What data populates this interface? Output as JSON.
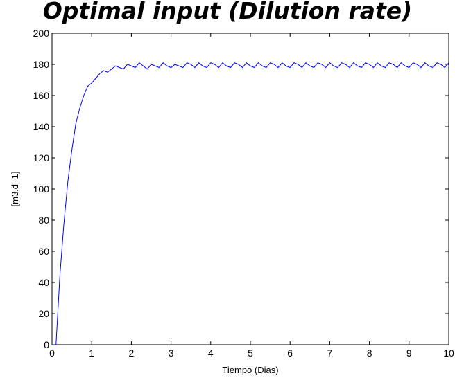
{
  "chart_data": {
    "type": "line",
    "title": "Optimal input (Dilution rate)",
    "xlabel": "Tiempo (Dias)",
    "ylabel": "[m3.d−1]",
    "xlim": [
      0,
      10
    ],
    "ylim": [
      0,
      200
    ],
    "xticks": [
      "0",
      "1",
      "2",
      "3",
      "4",
      "5",
      "6",
      "7",
      "8",
      "9",
      "10"
    ],
    "yticks": [
      "0",
      "20",
      "40",
      "60",
      "80",
      "100",
      "120",
      "140",
      "160",
      "180",
      "200"
    ],
    "grid": false,
    "line_color": "#0000ff",
    "series": [
      {
        "x": [
          0,
          0.1,
          0.2,
          0.3,
          0.4,
          0.5,
          0.6,
          0.7,
          0.8,
          0.9,
          1.0,
          1.1,
          1.2,
          1.3,
          1.4,
          1.5,
          1.6,
          1.7,
          1.8,
          1.9,
          2.0,
          2.1,
          2.2,
          2.3,
          2.4,
          2.5,
          2.6,
          2.7,
          2.8,
          2.9,
          3.0,
          3.1,
          3.2,
          3.3,
          3.4,
          3.5,
          3.6,
          3.7,
          3.8,
          3.9,
          4.0,
          4.1,
          4.2,
          4.3,
          4.4,
          4.5,
          4.6,
          4.7,
          4.8,
          4.9,
          5.0,
          5.1,
          5.2,
          5.3,
          5.4,
          5.5,
          5.6,
          5.7,
          5.8,
          5.9,
          6.0,
          6.1,
          6.2,
          6.3,
          6.4,
          6.5,
          6.6,
          6.7,
          6.8,
          6.9,
          7.0,
          7.1,
          7.2,
          7.3,
          7.4,
          7.5,
          7.6,
          7.7,
          7.8,
          7.9,
          8.0,
          8.1,
          8.2,
          8.3,
          8.4,
          8.5,
          8.6,
          8.7,
          8.8,
          8.9,
          9.0,
          9.1,
          9.2,
          9.3,
          9.4,
          9.5,
          9.6,
          9.7,
          9.8,
          9.9,
          10.0
        ],
        "y": [
          0,
          0,
          45,
          78,
          105,
          125,
          142,
          152,
          160,
          166,
          168,
          171,
          174,
          176,
          175,
          177,
          179,
          178,
          177,
          180,
          179,
          178,
          181,
          179,
          177,
          180,
          179,
          178,
          181,
          179,
          178,
          180,
          179,
          178,
          181,
          180,
          178,
          181,
          179,
          178,
          181,
          180,
          178,
          181,
          179,
          178,
          181,
          180,
          178,
          181,
          179,
          178,
          181,
          179,
          178,
          181,
          180,
          178,
          181,
          179,
          178,
          181,
          180,
          178,
          181,
          179,
          178,
          181,
          180,
          178,
          181,
          179,
          178,
          181,
          180,
          178,
          181,
          179,
          178,
          181,
          180,
          178,
          181,
          179,
          178,
          181,
          180,
          178,
          181,
          179,
          178,
          181,
          180,
          178,
          181,
          179,
          178,
          181,
          180,
          178,
          181
        ]
      }
    ]
  }
}
